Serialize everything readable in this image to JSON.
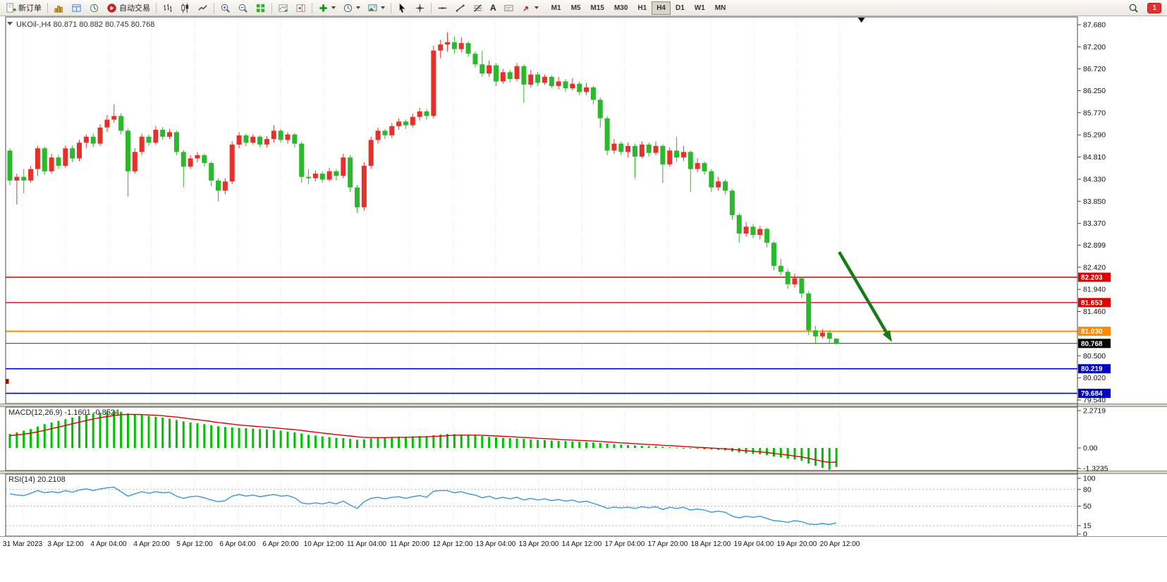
{
  "toolbar": {
    "new_order_label": "新订单",
    "autotrading_label": "自动交易",
    "text_tool_label": "A",
    "timeframes": [
      "M1",
      "M5",
      "M15",
      "M30",
      "H1",
      "H4",
      "D1",
      "W1",
      "MN"
    ],
    "active_timeframe": "H4",
    "notification_count": "1"
  },
  "chart_data": {
    "type": "candlestick",
    "symbol": "UKOil-",
    "timeframe": "H4",
    "header": "UKOil-,H4 80.871 80.882 80.745 80.768",
    "ohlc_current": {
      "open": 80.871,
      "high": 80.882,
      "low": 80.745,
      "close": 80.768
    },
    "colors": {
      "up": "#e8302a",
      "down": "#2bb82b",
      "macd_hist": "#00c000",
      "macd_signal": "#dd0000",
      "rsi_line": "#3a96dd",
      "grid": "#e0e0e0"
    },
    "y_axis_labels": [
      "87.680",
      "87.200",
      "86.720",
      "86.250",
      "85.770",
      "85.290",
      "84.810",
      "84.330",
      "83.850",
      "83.370",
      "82.899",
      "82.420",
      "81.940",
      "81.460",
      "80.500",
      "80.020",
      "79.540"
    ],
    "x_labels": [
      "31 Mar 2023",
      "3 Apr 12:00",
      "4 Apr 04:00",
      "4 Apr 20:00",
      "5 Apr 12:00",
      "6 Apr 04:00",
      "6 Apr 20:00",
      "10 Apr 12:00",
      "11 Apr 04:00",
      "11 Apr 20:00",
      "12 Apr 12:00",
      "13 Apr 04:00",
      "13 Apr 20:00",
      "14 Apr 12:00",
      "17 Apr 04:00",
      "17 Apr 20:00",
      "18 Apr 12:00",
      "19 Apr 04:00",
      "19 Apr 20:00",
      "20 Apr 12:00"
    ],
    "price_lines": [
      {
        "price": 82.203,
        "color": "#d40000",
        "width": 1.4
      },
      {
        "price": 81.653,
        "color": "#d40000",
        "width": 1.4
      },
      {
        "price": 81.03,
        "color": "#ff8c00",
        "width": 2
      },
      {
        "price": 80.219,
        "color": "#0000cd",
        "width": 1.6
      },
      {
        "price": 79.684,
        "color": "#0000cd",
        "width": 1.6
      }
    ],
    "current_price": {
      "value": 80.768,
      "line_color": "#333333"
    },
    "price_tags": [
      {
        "label": "82.203",
        "value": 82.203,
        "bg": "#e00000"
      },
      {
        "label": "81.653",
        "value": 81.653,
        "bg": "#e00000"
      },
      {
        "label": "81.030",
        "value": 81.03,
        "bg": "#ff8c00"
      },
      {
        "label": "80.768",
        "value": 80.768,
        "bg": "#000000"
      },
      {
        "label": "80.219",
        "value": 80.219,
        "bg": "#0000c0"
      },
      {
        "label": "79.684",
        "value": 79.684,
        "bg": "#0000c0"
      }
    ],
    "candles": [
      [
        84.95,
        85.0,
        84.2,
        84.3
      ],
      [
        84.3,
        84.45,
        83.78,
        84.38
      ],
      [
        84.38,
        84.55,
        84.02,
        84.3
      ],
      [
        84.3,
        84.62,
        84.25,
        84.55
      ],
      [
        84.55,
        85.05,
        84.4,
        85.0
      ],
      [
        85.0,
        85.04,
        84.42,
        84.5
      ],
      [
        84.5,
        84.88,
        84.45,
        84.8
      ],
      [
        84.8,
        84.86,
        84.55,
        84.62
      ],
      [
        84.62,
        85.06,
        84.58,
        85.0
      ],
      [
        85.0,
        85.06,
        84.7,
        84.78
      ],
      [
        84.78,
        85.18,
        84.72,
        85.12
      ],
      [
        85.12,
        85.3,
        85.0,
        85.25
      ],
      [
        85.25,
        85.32,
        85.02,
        85.1
      ],
      [
        85.1,
        85.52,
        85.05,
        85.45
      ],
      [
        85.45,
        85.72,
        85.35,
        85.62
      ],
      [
        85.62,
        85.95,
        85.55,
        85.7
      ],
      [
        85.7,
        85.76,
        85.3,
        85.38
      ],
      [
        85.38,
        85.42,
        83.95,
        84.5
      ],
      [
        84.5,
        85.0,
        84.45,
        84.92
      ],
      [
        84.92,
        85.32,
        84.85,
        85.25
      ],
      [
        85.25,
        85.3,
        85.05,
        85.12
      ],
      [
        85.12,
        85.48,
        85.08,
        85.4
      ],
      [
        85.4,
        85.46,
        85.18,
        85.25
      ],
      [
        85.25,
        85.42,
        85.2,
        85.35
      ],
      [
        85.35,
        85.38,
        84.85,
        84.92
      ],
      [
        84.92,
        84.96,
        84.15,
        84.6
      ],
      [
        84.6,
        84.85,
        84.55,
        84.78
      ],
      [
        84.78,
        84.92,
        84.7,
        84.85
      ],
      [
        84.85,
        84.89,
        84.6,
        84.68
      ],
      [
        84.68,
        84.72,
        84.18,
        84.3
      ],
      [
        84.3,
        84.35,
        83.85,
        84.08
      ],
      [
        84.08,
        84.35,
        84.0,
        84.28
      ],
      [
        84.28,
        85.15,
        84.22,
        85.08
      ],
      [
        85.08,
        85.35,
        85.0,
        85.28
      ],
      [
        85.28,
        85.32,
        85.05,
        85.12
      ],
      [
        85.12,
        85.3,
        85.08,
        85.25
      ],
      [
        85.25,
        85.28,
        85.02,
        85.08
      ],
      [
        85.08,
        85.26,
        85.02,
        85.2
      ],
      [
        85.2,
        85.5,
        85.12,
        85.38
      ],
      [
        85.38,
        85.42,
        85.12,
        85.18
      ],
      [
        85.18,
        85.35,
        85.1,
        85.3
      ],
      [
        85.3,
        85.33,
        85.02,
        85.1
      ],
      [
        85.1,
        85.15,
        84.25,
        84.38
      ],
      [
        84.38,
        84.55,
        84.22,
        84.35
      ],
      [
        84.35,
        84.52,
        84.28,
        84.45
      ],
      [
        84.45,
        84.5,
        84.25,
        84.32
      ],
      [
        84.32,
        84.58,
        84.28,
        84.5
      ],
      [
        84.5,
        84.55,
        84.3,
        84.4
      ],
      [
        84.4,
        84.88,
        84.35,
        84.8
      ],
      [
        84.8,
        84.85,
        84.05,
        84.15
      ],
      [
        84.15,
        84.2,
        83.6,
        83.72
      ],
      [
        83.72,
        84.7,
        83.65,
        84.62
      ],
      [
        84.62,
        85.25,
        84.55,
        85.18
      ],
      [
        85.18,
        85.45,
        85.1,
        85.38
      ],
      [
        85.38,
        85.42,
        85.2,
        85.28
      ],
      [
        85.28,
        85.55,
        85.22,
        85.48
      ],
      [
        85.48,
        85.65,
        85.4,
        85.58
      ],
      [
        85.58,
        85.62,
        85.42,
        85.5
      ],
      [
        85.5,
        85.75,
        85.45,
        85.68
      ],
      [
        85.68,
        85.88,
        85.6,
        85.8
      ],
      [
        85.8,
        85.85,
        85.62,
        85.7
      ],
      [
        85.7,
        87.22,
        85.65,
        87.12
      ],
      [
        87.12,
        87.35,
        86.95,
        87.25
      ],
      [
        87.25,
        87.52,
        87.1,
        87.3
      ],
      [
        87.3,
        87.42,
        87.05,
        87.15
      ],
      [
        87.15,
        87.4,
        87.08,
        87.28
      ],
      [
        87.28,
        87.32,
        86.98,
        87.05
      ],
      [
        87.05,
        87.1,
        86.75,
        86.82
      ],
      [
        86.82,
        87.12,
        86.55,
        86.62
      ],
      [
        86.62,
        86.9,
        86.55,
        86.8
      ],
      [
        86.8,
        86.85,
        86.35,
        86.45
      ],
      [
        86.45,
        86.72,
        86.4,
        86.65
      ],
      [
        86.65,
        86.7,
        86.42,
        86.5
      ],
      [
        86.5,
        86.85,
        86.45,
        86.78
      ],
      [
        86.78,
        86.82,
        85.98,
        86.38
      ],
      [
        86.38,
        86.7,
        86.32,
        86.6
      ],
      [
        86.6,
        86.65,
        86.35,
        86.42
      ],
      [
        86.42,
        86.6,
        86.38,
        86.55
      ],
      [
        86.55,
        86.58,
        86.3,
        86.35
      ],
      [
        86.35,
        86.55,
        86.28,
        86.45
      ],
      [
        86.45,
        86.5,
        86.22,
        86.3
      ],
      [
        86.3,
        86.52,
        86.25,
        86.4
      ],
      [
        86.4,
        86.45,
        86.15,
        86.22
      ],
      [
        86.22,
        86.42,
        86.15,
        86.32
      ],
      [
        86.32,
        86.35,
        85.95,
        86.05
      ],
      [
        86.05,
        86.1,
        85.45,
        85.65
      ],
      [
        85.65,
        85.7,
        84.85,
        84.95
      ],
      [
        84.95,
        85.2,
        84.88,
        85.1
      ],
      [
        85.1,
        85.15,
        84.85,
        84.92
      ],
      [
        84.92,
        85.12,
        84.8,
        85.05
      ],
      [
        85.05,
        85.1,
        84.35,
        84.82
      ],
      [
        84.82,
        85.15,
        84.78,
        85.08
      ],
      [
        85.08,
        85.12,
        84.82,
        84.9
      ],
      [
        84.9,
        85.15,
        84.85,
        85.05
      ],
      [
        85.05,
        85.08,
        84.25,
        84.65
      ],
      [
        84.65,
        85.02,
        84.6,
        84.95
      ],
      [
        84.95,
        85.25,
        84.7,
        84.8
      ],
      [
        84.8,
        85.05,
        84.72,
        84.92
      ],
      [
        84.92,
        84.95,
        84.05,
        84.55
      ],
      [
        84.55,
        84.78,
        84.48,
        84.68
      ],
      [
        84.68,
        84.72,
        84.42,
        84.5
      ],
      [
        84.5,
        84.55,
        84.05,
        84.15
      ],
      [
        84.15,
        84.38,
        84.08,
        84.28
      ],
      [
        84.28,
        84.32,
        84.0,
        84.08
      ],
      [
        84.08,
        84.12,
        83.45,
        83.55
      ],
      [
        83.55,
        83.6,
        82.95,
        83.15
      ],
      [
        83.15,
        83.4,
        83.08,
        83.3
      ],
      [
        83.3,
        83.35,
        83.05,
        83.12
      ],
      [
        83.12,
        83.32,
        83.02,
        83.25
      ],
      [
        83.25,
        83.28,
        82.85,
        82.95
      ],
      [
        82.95,
        82.98,
        82.35,
        82.45
      ],
      [
        82.45,
        82.6,
        82.25,
        82.32
      ],
      [
        82.32,
        82.38,
        81.95,
        82.05
      ],
      [
        82.05,
        82.28,
        81.98,
        82.18
      ],
      [
        82.18,
        82.22,
        81.75,
        81.85
      ],
      [
        81.85,
        81.9,
        80.95,
        81.05
      ],
      [
        81.05,
        81.15,
        80.75,
        80.92
      ],
      [
        80.92,
        81.08,
        80.88,
        81.0
      ],
      [
        81.0,
        81.05,
        80.78,
        80.87
      ],
      [
        80.871,
        80.882,
        80.745,
        80.768
      ]
    ],
    "macd": {
      "label": "MACD(12,26,9) -1.1601 -0.8524",
      "current": {
        "main": -1.1601,
        "signal": -0.8524
      },
      "axis_labels": [
        [
          "2.2719",
          2.2719
        ],
        [
          "0.00",
          0
        ],
        [
          "-1.3235",
          -1.3235
        ]
      ],
      "histogram": [
        0.85,
        0.95,
        1.05,
        1.15,
        1.3,
        1.45,
        1.55,
        1.65,
        1.75,
        1.85,
        1.95,
        2.05,
        2.1,
        2.15,
        2.2,
        2.25,
        2.2,
        2.1,
        2.05,
        2.0,
        1.95,
        1.9,
        1.85,
        1.78,
        1.7,
        1.62,
        1.55,
        1.5,
        1.45,
        1.38,
        1.32,
        1.28,
        1.25,
        1.22,
        1.2,
        1.18,
        1.15,
        1.12,
        1.1,
        1.05,
        1.0,
        0.95,
        0.88,
        0.8,
        0.75,
        0.7,
        0.66,
        0.62,
        0.6,
        0.55,
        0.5,
        0.52,
        0.58,
        0.62,
        0.64,
        0.66,
        0.68,
        0.68,
        0.7,
        0.72,
        0.72,
        0.78,
        0.82,
        0.85,
        0.84,
        0.82,
        0.8,
        0.76,
        0.72,
        0.68,
        0.65,
        0.62,
        0.6,
        0.58,
        0.55,
        0.52,
        0.5,
        0.48,
        0.45,
        0.43,
        0.42,
        0.4,
        0.38,
        0.36,
        0.33,
        0.3,
        0.26,
        0.23,
        0.2,
        0.18,
        0.15,
        0.13,
        0.11,
        0.1,
        0.07,
        0.04,
        0.02,
        0.0,
        -0.03,
        -0.05,
        -0.08,
        -0.1,
        -0.12,
        -0.15,
        -0.22,
        -0.28,
        -0.32,
        -0.36,
        -0.38,
        -0.44,
        -0.52,
        -0.58,
        -0.66,
        -0.7,
        -0.78,
        -0.95,
        -1.08,
        -1.2,
        -1.3235,
        -1.1601
      ],
      "signal": [
        0.75,
        0.79,
        0.84,
        0.9,
        0.98,
        1.07,
        1.17,
        1.27,
        1.37,
        1.47,
        1.57,
        1.67,
        1.76,
        1.84,
        1.91,
        1.98,
        2.02,
        2.04,
        2.04,
        2.03,
        2.01,
        1.99,
        1.96,
        1.92,
        1.88,
        1.83,
        1.77,
        1.72,
        1.67,
        1.61,
        1.55,
        1.5,
        1.45,
        1.4,
        1.36,
        1.33,
        1.29,
        1.26,
        1.23,
        1.19,
        1.15,
        1.11,
        1.07,
        1.01,
        0.96,
        0.91,
        0.86,
        0.81,
        0.77,
        0.73,
        0.68,
        0.65,
        0.63,
        0.63,
        0.63,
        0.64,
        0.65,
        0.65,
        0.66,
        0.67,
        0.68,
        0.7,
        0.72,
        0.75,
        0.77,
        0.78,
        0.78,
        0.78,
        0.77,
        0.75,
        0.73,
        0.71,
        0.69,
        0.66,
        0.64,
        0.62,
        0.59,
        0.57,
        0.55,
        0.52,
        0.5,
        0.48,
        0.46,
        0.44,
        0.42,
        0.4,
        0.37,
        0.34,
        0.31,
        0.29,
        0.26,
        0.23,
        0.21,
        0.19,
        0.16,
        0.14,
        0.12,
        0.09,
        0.07,
        0.04,
        0.02,
        -0.01,
        -0.03,
        -0.05,
        -0.09,
        -0.13,
        -0.17,
        -0.2,
        -0.24,
        -0.28,
        -0.33,
        -0.38,
        -0.43,
        -0.49,
        -0.55,
        -0.63,
        -0.72,
        -0.81,
        -0.88,
        -0.8524
      ]
    },
    "rsi": {
      "label": "RSI(14) 20.2108",
      "current": 20.2108,
      "axis_labels": [
        [
          "100",
          100
        ],
        [
          "80",
          80
        ],
        [
          "50",
          50
        ],
        [
          "15",
          15
        ],
        [
          "0",
          0
        ]
      ],
      "levels": [
        80,
        50,
        15
      ],
      "values": [
        72,
        70,
        69,
        73,
        78,
        74,
        76,
        74,
        78,
        75,
        79,
        81,
        78,
        81,
        83,
        84,
        76,
        68,
        72,
        76,
        73,
        76,
        74,
        75,
        68,
        64,
        67,
        68,
        65,
        61,
        58,
        60,
        68,
        71,
        68,
        70,
        67,
        69,
        71,
        68,
        69,
        65,
        56,
        54,
        56,
        54,
        57,
        54,
        59,
        52,
        46,
        58,
        64,
        66,
        63,
        66,
        67,
        64,
        67,
        69,
        66,
        77,
        78,
        78,
        74,
        76,
        72,
        70,
        65,
        68,
        63,
        66,
        63,
        66,
        61,
        64,
        61,
        63,
        60,
        62,
        59,
        61,
        57,
        59,
        55,
        51,
        46,
        48,
        47,
        48,
        46,
        49,
        47,
        49,
        44,
        48,
        46,
        48,
        43,
        45,
        43,
        39,
        41,
        39,
        32,
        29,
        32,
        30,
        32,
        28,
        24,
        23,
        21,
        24,
        22,
        18,
        17,
        19,
        17,
        20.21
      ]
    },
    "annotations": {
      "trend_arrow": {
        "x1_index": 119.4,
        "price1": 82.75,
        "x2_index": 127.0,
        "price2": 80.8,
        "color": "#1a7a1a"
      },
      "scroll_marker_x_index": 122.6,
      "left_edge_marker_price": 79.95
    }
  }
}
